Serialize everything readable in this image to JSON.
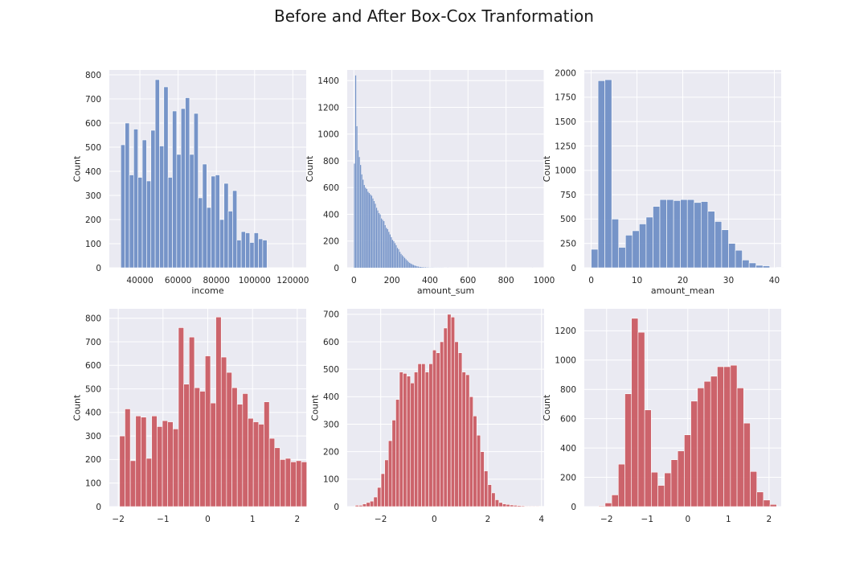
{
  "figure_title": "Before and After Box-Cox Tranformation",
  "colors": {
    "before": "#6b8cc4",
    "after": "#c9575f",
    "plot_bg": "#eaeaf2",
    "grid": "#ffffff"
  },
  "chart_data": [
    {
      "type": "bar",
      "xlabel": "income",
      "ylabel": "Count",
      "xlim": [
        24000,
        127000
      ],
      "ylim": [
        0,
        820
      ],
      "xticks": [
        40000,
        60000,
        80000,
        100000,
        120000
      ],
      "xtick_labels": [
        "40000",
        "60000",
        "80000",
        "100000",
        "120000"
      ],
      "yticks": [
        0,
        100,
        200,
        300,
        400,
        500,
        600,
        700,
        800
      ],
      "ytick_labels": [
        "0",
        "100",
        "200",
        "300",
        "400",
        "500",
        "600",
        "700",
        "800"
      ],
      "x_start": 30000,
      "bin_width": 2250,
      "values": [
        510,
        600,
        385,
        575,
        375,
        530,
        360,
        570,
        780,
        505,
        750,
        375,
        650,
        470,
        660,
        705,
        470,
        640,
        290,
        430,
        250,
        380,
        385,
        200,
        350,
        235,
        320,
        115,
        150,
        145,
        105,
        145,
        120,
        115
      ],
      "color": "before"
    },
    {
      "type": "bar",
      "xlabel": "amount_sum",
      "ylabel": "Count",
      "xlim": [
        -35,
        1000
      ],
      "ylim": [
        0,
        1480
      ],
      "xticks": [
        0,
        200,
        400,
        600,
        800,
        1000
      ],
      "xtick_labels": [
        "0",
        "200",
        "400",
        "600",
        "800",
        "1000"
      ],
      "yticks": [
        0,
        200,
        400,
        600,
        800,
        1000,
        1200,
        1400
      ],
      "ytick_labels": [
        "0",
        "200",
        "400",
        "600",
        "800",
        "1000",
        "1200",
        "1400"
      ],
      "x_start": 0,
      "bin_width": 6.45,
      "values": [
        780,
        1440,
        1060,
        880,
        830,
        770,
        700,
        660,
        620,
        600,
        590,
        570,
        560,
        550,
        540,
        520,
        500,
        480,
        450,
        430,
        410,
        400,
        370,
        360,
        350,
        320,
        300,
        290,
        270,
        250,
        230,
        210,
        200,
        185,
        170,
        150,
        140,
        120,
        105,
        95,
        85,
        75,
        65,
        55,
        45,
        38,
        32,
        27,
        22,
        18,
        15,
        12,
        10,
        8,
        7,
        6,
        5,
        4,
        4,
        3,
        3,
        2,
        2,
        2,
        2,
        1,
        1,
        1,
        1,
        1,
        1,
        1,
        1,
        0,
        0,
        0,
        1,
        0,
        0,
        0,
        0,
        0,
        0,
        0,
        0,
        0,
        0,
        0,
        0,
        0,
        0,
        0,
        0,
        0,
        0,
        0,
        0,
        0,
        0,
        0,
        0,
        0,
        0,
        0,
        0,
        0,
        0,
        0,
        0,
        0,
        0,
        0,
        0,
        0,
        0,
        0,
        0,
        0,
        0,
        0,
        0,
        0,
        0,
        0,
        0,
        0,
        0,
        0,
        0,
        0,
        0,
        0,
        0,
        0,
        0,
        0,
        0,
        0,
        0,
        0,
        0,
        0,
        0,
        0,
        0,
        1
      ],
      "color": "before"
    },
    {
      "type": "bar",
      "xlabel": "amount_mean",
      "ylabel": "Count",
      "xlim": [
        -1.5,
        41.5
      ],
      "ylim": [
        0,
        2030
      ],
      "xticks": [
        0,
        10,
        20,
        30,
        40
      ],
      "xtick_labels": [
        "0",
        "10",
        "20",
        "30",
        "40"
      ],
      "yticks": [
        0,
        250,
        500,
        750,
        1000,
        1250,
        1500,
        1750,
        2000
      ],
      "ytick_labels": [
        "0",
        "250",
        "500",
        "750",
        "1000",
        "1250",
        "1500",
        "1750",
        "2000"
      ],
      "x_start": 0,
      "bin_width": 1.5,
      "values": [
        190,
        1920,
        1930,
        500,
        210,
        335,
        380,
        450,
        520,
        630,
        700,
        700,
        690,
        700,
        700,
        670,
        680,
        580,
        475,
        390,
        250,
        180,
        80,
        50,
        25,
        20,
        0,
        5
      ],
      "color": "before"
    },
    {
      "type": "bar",
      "xlabel": "",
      "ylabel": "Count",
      "xlim": [
        -2.2,
        2.2
      ],
      "ylim": [
        0,
        840
      ],
      "xticks": [
        -2,
        -1,
        0,
        1,
        2
      ],
      "xtick_labels": [
        "−2",
        "−1",
        "0",
        "1",
        "2"
      ],
      "yticks": [
        0,
        100,
        200,
        300,
        400,
        500,
        600,
        700,
        800
      ],
      "ytick_labels": [
        "0",
        "100",
        "200",
        "300",
        "400",
        "500",
        "600",
        "700",
        "800"
      ],
      "x_start": -1.97,
      "bin_width": 0.1195,
      "values": [
        300,
        415,
        195,
        385,
        380,
        205,
        385,
        340,
        365,
        360,
        330,
        760,
        520,
        720,
        505,
        490,
        640,
        440,
        805,
        635,
        570,
        505,
        435,
        480,
        375,
        360,
        350,
        445,
        290,
        250,
        200,
        205,
        190,
        195,
        190
      ],
      "color": "after"
    },
    {
      "type": "bar",
      "xlabel": "",
      "ylabel": "Count",
      "xlim": [
        -3.25,
        4.1
      ],
      "ylim": [
        0,
        720
      ],
      "xticks": [
        -2,
        0,
        2,
        4
      ],
      "xtick_labels": [
        "−2",
        "0",
        "2",
        "4"
      ],
      "yticks": [
        0,
        100,
        200,
        300,
        400,
        500,
        600,
        700
      ],
      "ytick_labels": [
        "0",
        "100",
        "200",
        "300",
        "400",
        "500",
        "600",
        "700"
      ],
      "x_start": -2.95,
      "bin_width": 0.1375,
      "values": [
        5,
        5,
        10,
        15,
        20,
        35,
        70,
        120,
        170,
        240,
        315,
        390,
        490,
        485,
        475,
        450,
        490,
        520,
        520,
        490,
        520,
        570,
        560,
        600,
        650,
        700,
        690,
        600,
        560,
        490,
        480,
        400,
        330,
        260,
        200,
        130,
        80,
        50,
        25,
        15,
        10,
        8,
        6,
        5,
        4,
        3,
        2,
        2,
        2,
        2,
        1,
        1
      ],
      "color": "after"
    },
    {
      "type": "bar",
      "xlabel": "",
      "ylabel": "Count",
      "xlim": [
        -2.55,
        2.3
      ],
      "ylim": [
        0,
        1350
      ],
      "xticks": [
        -2,
        -1,
        0,
        1,
        2
      ],
      "xtick_labels": [
        "−2",
        "−1",
        "0",
        "1",
        "2"
      ],
      "yticks": [
        0,
        200,
        400,
        600,
        800,
        1000,
        1200
      ],
      "ytick_labels": [
        "0",
        "200",
        "400",
        "600",
        "800",
        "1000",
        "1200"
      ],
      "x_start": -2.2,
      "bin_width": 0.1625,
      "values": [
        5,
        25,
        80,
        290,
        770,
        1285,
        1190,
        660,
        235,
        145,
        230,
        320,
        380,
        490,
        720,
        810,
        855,
        890,
        955,
        955,
        965,
        810,
        570,
        240,
        100,
        45,
        15
      ],
      "color": "after"
    }
  ]
}
